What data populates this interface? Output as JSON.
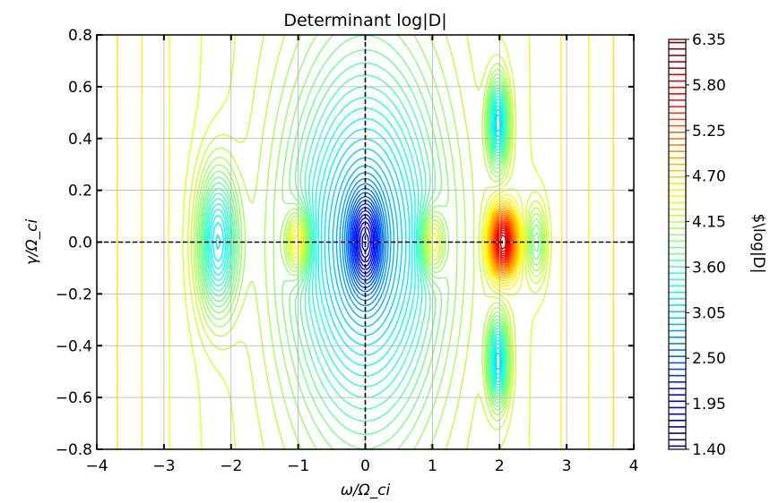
{
  "chart_data": {
    "type": "contour",
    "title": "Determinant log|D|",
    "xlabel": "ω/Ω_ci",
    "ylabel": "γ/Ω_ci",
    "xlim": [
      -4,
      4
    ],
    "ylim": [
      -0.8,
      0.8
    ],
    "x_ticks": [
      -4,
      -3,
      -2,
      -1,
      0,
      1,
      2,
      3,
      4
    ],
    "x_tick_labels": [
      "−4",
      "−3",
      "−2",
      "−1",
      "0",
      "1",
      "2",
      "3",
      "4"
    ],
    "y_ticks": [
      -0.8,
      -0.6,
      -0.4,
      -0.2,
      0.0,
      0.2,
      0.4,
      0.6,
      0.8
    ],
    "y_tick_labels": [
      "−0.8",
      "−0.6",
      "−0.4",
      "−0.2",
      "0.0",
      "0.2",
      "0.4",
      "0.6",
      "0.8"
    ],
    "grid": true,
    "reference_lines": [
      {
        "orientation": "horizontal",
        "value": 0.0,
        "style": "dashed",
        "color": "#000000"
      },
      {
        "orientation": "vertical",
        "value": 0.0,
        "style": "dashed",
        "color": "#000000"
      }
    ],
    "colormap": "jet",
    "colorbar": {
      "label": "$\\log|D|",
      "min": 1.4,
      "max": 6.35,
      "ticks": [
        1.4,
        1.95,
        2.5,
        3.05,
        3.6,
        4.15,
        4.7,
        5.25,
        5.8,
        6.35
      ],
      "tick_labels": [
        "1.40",
        "1.95",
        "2.50",
        "3.05",
        "3.60",
        "4.15",
        "4.70",
        "5.25",
        "5.80",
        "6.35"
      ]
    },
    "features": [
      {
        "kind": "minimum",
        "omega": 0.0,
        "gamma": 0.0,
        "value": 1.4
      },
      {
        "kind": "minimum",
        "omega": -2.2,
        "gamma": 0.0,
        "value": 2.8
      },
      {
        "kind": "maximum",
        "omega": -1.0,
        "gamma": 0.0,
        "value": 5.3
      },
      {
        "kind": "maximum",
        "omega": 1.0,
        "gamma": 0.0,
        "value": 5.2
      },
      {
        "kind": "maximum",
        "omega": 2.05,
        "gamma": 0.0,
        "value": 6.3
      },
      {
        "kind": "minimum",
        "omega": 2.5,
        "gamma": 0.0,
        "value": 3.2
      },
      {
        "kind": "minimum",
        "omega": 1.98,
        "gamma": 0.46,
        "value": 2.8
      },
      {
        "kind": "minimum",
        "omega": 1.98,
        "gamma": -0.46,
        "value": 2.8
      }
    ]
  }
}
